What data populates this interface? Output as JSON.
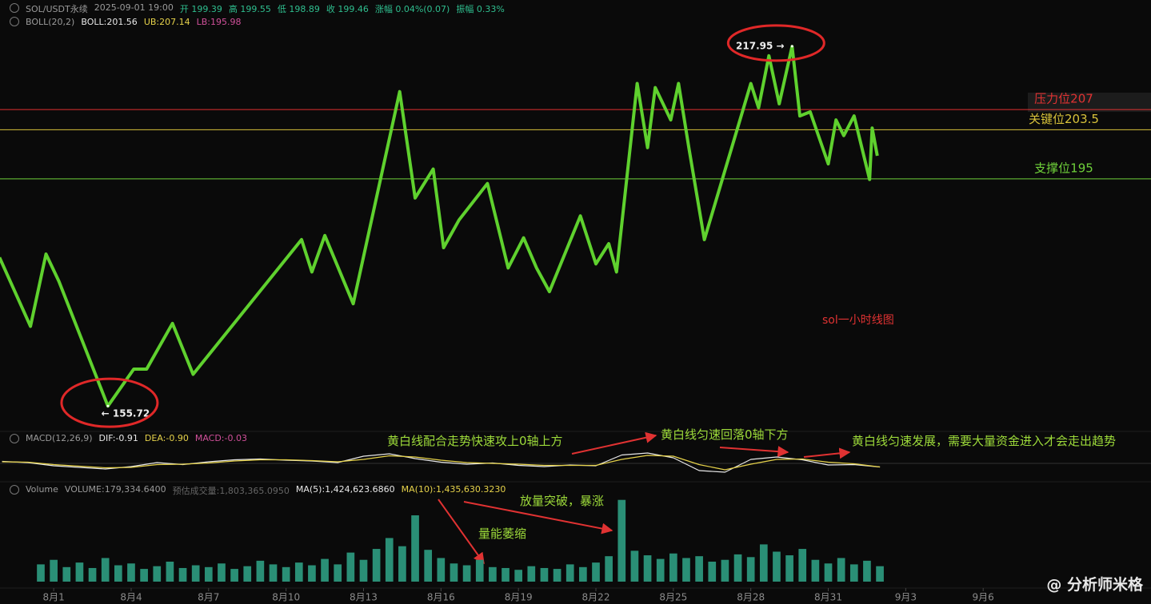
{
  "header": [
    {
      "text": "SOL/USDT永续",
      "color": "#9a9a9a"
    },
    {
      "text": "2025-09-01 19:00",
      "color": "#9a9a9a"
    },
    {
      "text": "开 199.39",
      "color": "#2fbf8f"
    },
    {
      "text": "高 199.55",
      "color": "#2fbf8f"
    },
    {
      "text": "低 198.89",
      "color": "#2fbf8f"
    },
    {
      "text": "收 199.46",
      "color": "#2fbf8f"
    },
    {
      "text": "涨幅 0.04%(0.07)",
      "color": "#2fbf8f"
    },
    {
      "text": "振幅 0.33%",
      "color": "#2fbf8f"
    }
  ],
  "boll_header": [
    {
      "text": "BOLL(20,2)",
      "color": "#9a9a9a"
    },
    {
      "text": "BOLL:201.56",
      "color": "#e8e8e8"
    },
    {
      "text": "UB:207.14",
      "color": "#e6d24a"
    },
    {
      "text": "LB:195.98",
      "color": "#d0509a"
    }
  ],
  "macd_header": [
    {
      "text": "MACD(12,26,9)",
      "color": "#9a9a9a"
    },
    {
      "text": "DIF:-0.91",
      "color": "#e8e8e8"
    },
    {
      "text": "DEA:-0.90",
      "color": "#e6d24a"
    },
    {
      "text": "MACD:-0.03",
      "color": "#d0509a"
    }
  ],
  "volume_header": [
    {
      "text": "Volume",
      "color": "#9a9a9a"
    },
    {
      "text": "VOLUME:179,334.6400",
      "color": "#9a9a9a"
    },
    {
      "text": "预估成交量:1,803,365.0950",
      "color": "#666666"
    },
    {
      "text": "MA(5):1,424,623.6860",
      "color": "#e8e8e8"
    },
    {
      "text": "MA(10):1,435,630.3230",
      "color": "#e6d24a"
    }
  ],
  "annotations": [
    "sol一小时线图",
    "黄白线配合走势快速攻上0轴上方",
    "黄白线匀速回落0轴下方",
    "黄白线匀速发展，需要大量资金进入才会走出趋势",
    "放量突破，暴涨",
    "量能萎缩"
  ],
  "watermark": "@ 分析师米格",
  "chart_data": [
    {
      "type": "line",
      "color": "#5fd12e",
      "xlim": [
        -1.08,
        43.5
      ],
      "ylim": [
        152.7,
        221.8
      ],
      "x": [
        -1.1,
        0.1,
        0.7,
        1.2,
        3.1,
        4.1,
        4.6,
        5.6,
        6.4,
        10.6,
        11.0,
        11.5,
        12.6,
        14.4,
        15.0,
        15.7,
        16.1,
        16.7,
        17.8,
        18.6,
        19.2,
        19.7,
        20.2,
        21.4,
        22.0,
        22.5,
        22.8,
        23.6,
        24.0,
        24.3,
        24.9,
        25.2,
        25.6,
        26.2,
        28.0,
        28.3,
        28.7,
        29.1,
        29.6,
        29.9,
        30.3,
        31.0,
        31.3,
        31.6,
        32.0,
        32.6,
        32.7,
        32.9
      ],
      "values": [
        181.4,
        169.5,
        182.0,
        177.3,
        155.7,
        162.1,
        162.1,
        170.0,
        161.2,
        184.5,
        178.9,
        185.2,
        173.4,
        210.1,
        191.7,
        196.7,
        183.1,
        187.9,
        194.2,
        179.6,
        184.8,
        179.6,
        175.5,
        188.6,
        180.3,
        183.8,
        178.9,
        211.5,
        200.4,
        210.8,
        205.2,
        211.5,
        200.4,
        184.5,
        211.5,
        207.3,
        216.3,
        208.0,
        217.9,
        205.9,
        206.6,
        197.6,
        205.2,
        202.5,
        205.9,
        194.9,
        203.8,
        199.0
      ],
      "levels": [
        {
          "value": 207,
          "label": "压力位207",
          "color": "#e03232"
        },
        {
          "value": 203.5,
          "label": "关键位203.5",
          "color": "#d8c23a"
        },
        {
          "value": 195,
          "label": "支撑位195",
          "color": "#6fd13a"
        }
      ],
      "extremes": [
        {
          "x": 29.6,
          "value": 217.95,
          "label": "217.95 →"
        },
        {
          "x": 3.1,
          "value": 155.72,
          "label": "← 155.72"
        }
      ]
    },
    {
      "type": "line",
      "xlim": [
        -1.08,
        43.5
      ],
      "ylim": [
        -4,
        4
      ],
      "x": [
        -1,
        0,
        1,
        2,
        3,
        4,
        5,
        6,
        7,
        8,
        9,
        10,
        11,
        12,
        13,
        14,
        15,
        16,
        17,
        18,
        19,
        20,
        21,
        22,
        23,
        24,
        25,
        26,
        27,
        28,
        29,
        30,
        31,
        32,
        33
      ],
      "series": [
        {
          "color": "#e8e8e8",
          "values": [
            0.5,
            0.2,
            -0.6,
            -1.0,
            -1.4,
            -0.8,
            0.2,
            -0.3,
            0.4,
            0.9,
            1.1,
            0.8,
            0.6,
            0.2,
            1.8,
            2.4,
            1.2,
            0.3,
            -0.2,
            0.1,
            -0.5,
            -0.8,
            -0.4,
            -0.6,
            2.1,
            2.6,
            1.4,
            -1.8,
            -2.2,
            1.0,
            1.6,
            0.9,
            -0.4,
            -0.3,
            -0.9
          ]
        },
        {
          "color": "#e6d24a",
          "values": [
            0.4,
            0.3,
            -0.3,
            -0.7,
            -1.1,
            -1.0,
            -0.3,
            -0.2,
            0.1,
            0.6,
            0.9,
            0.9,
            0.7,
            0.4,
            1.0,
            1.9,
            1.6,
            0.8,
            0.2,
            0.0,
            -0.2,
            -0.5,
            -0.5,
            -0.5,
            1.0,
            2.0,
            1.8,
            -0.3,
            -1.6,
            -0.2,
            1.0,
            1.1,
            0.3,
            -0.1,
            -0.9
          ]
        }
      ]
    },
    {
      "type": "bar",
      "color": "#2a8f76",
      "xlim": [
        -1.08,
        43.5
      ],
      "ylim": [
        0,
        9500000
      ],
      "x": [
        0.5,
        1.0,
        1.5,
        2.0,
        2.5,
        3.0,
        3.5,
        4.0,
        4.5,
        5.0,
        5.5,
        6.0,
        6.5,
        7.0,
        7.5,
        8.0,
        8.5,
        9.0,
        9.5,
        10.0,
        10.5,
        11.0,
        11.5,
        12.0,
        12.5,
        13.0,
        13.5,
        14.0,
        14.5,
        15.0,
        15.5,
        16.0,
        16.5,
        17.0,
        17.5,
        18.0,
        18.5,
        19.0,
        19.5,
        20.0,
        20.5,
        21.0,
        21.5,
        22.0,
        22.5,
        23.0,
        23.5,
        24.0,
        24.5,
        25.0,
        25.5,
        26.0,
        26.5,
        27.0,
        27.5,
        28.0,
        28.5,
        29.0,
        29.5,
        30.0,
        30.5,
        31.0,
        31.5,
        32.0,
        32.5,
        33.0
      ],
      "values": [
        1900000,
        2400000,
        1600000,
        2100000,
        1500000,
        2600000,
        1800000,
        2000000,
        1400000,
        1700000,
        2200000,
        1500000,
        1800000,
        1600000,
        2000000,
        1400000,
        1700000,
        2300000,
        1900000,
        1600000,
        2100000,
        1800000,
        2500000,
        1900000,
        3200000,
        2400000,
        3600000,
        4800000,
        3900000,
        7300000,
        3500000,
        2600000,
        2000000,
        1800000,
        2400000,
        1600000,
        1500000,
        1300000,
        1700000,
        1500000,
        1400000,
        1900000,
        1600000,
        2100000,
        2800000,
        9000000,
        3400000,
        2900000,
        2500000,
        3100000,
        2600000,
        2800000,
        2200000,
        2400000,
        3000000,
        2700000,
        4100000,
        3300000,
        2900000,
        3600000,
        2400000,
        2000000,
        2600000,
        1900000,
        2300000,
        1700000
      ],
      "xticks": [
        {
          "value": 1,
          "label": "8月1"
        },
        {
          "value": 4,
          "label": "8月4"
        },
        {
          "value": 7,
          "label": "8月7"
        },
        {
          "value": 10,
          "label": "8月10"
        },
        {
          "value": 13,
          "label": "8月13"
        },
        {
          "value": 16,
          "label": "8月16"
        },
        {
          "value": 19,
          "label": "8月19"
        },
        {
          "value": 22,
          "label": "8月22"
        },
        {
          "value": 25,
          "label": "8月25"
        },
        {
          "value": 28,
          "label": "8月28"
        },
        {
          "value": 31,
          "label": "8月31"
        },
        {
          "value": 34,
          "label": "9月3"
        },
        {
          "value": 37,
          "label": "9月6"
        }
      ]
    }
  ]
}
